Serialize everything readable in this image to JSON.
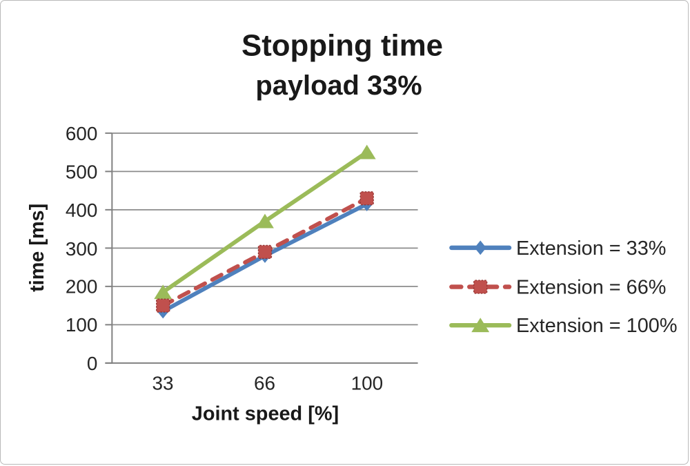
{
  "chart_data": {
    "type": "line",
    "title": "Stopping time",
    "subtitle": "payload 33%",
    "xlabel": "Joint speed [%]",
    "ylabel": "time [ms]",
    "categories": [
      "33",
      "66",
      "100"
    ],
    "yticks": [
      "0",
      "100",
      "200",
      "300",
      "400",
      "500",
      "600"
    ],
    "ylim": [
      0,
      600
    ],
    "ytick_step": 100,
    "grid": true,
    "legend_position": "right",
    "series": [
      {
        "name": "Extension = 33%",
        "values": [
          135,
          280,
          415
        ],
        "color": "#4F81BD",
        "marker": "diamond",
        "dash": "solid"
      },
      {
        "name": "Extension = 66%",
        "values": [
          150,
          290,
          430
        ],
        "color": "#C0504D",
        "marker": "square",
        "dash": "dashed"
      },
      {
        "name": "Extension = 100%",
        "values": [
          185,
          370,
          550
        ],
        "color": "#9BBB59",
        "marker": "triangle",
        "dash": "solid"
      }
    ],
    "grid_color": "#8C8C8C",
    "axis_color": "#808080",
    "text_color": "#262626"
  }
}
